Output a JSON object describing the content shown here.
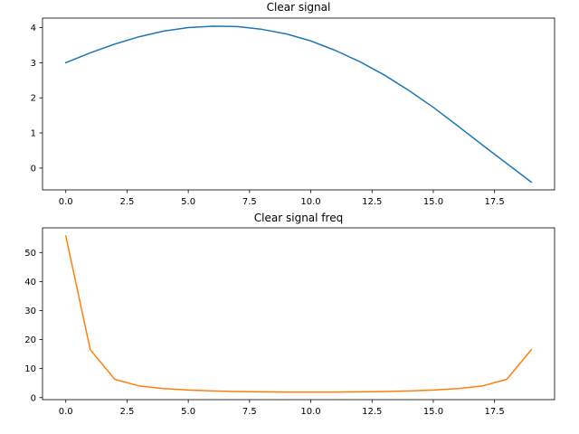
{
  "chart_data": [
    {
      "type": "line",
      "title": "Clear signal",
      "xlabel": "",
      "ylabel": "",
      "xlim": [
        -0.95,
        19.95
      ],
      "ylim": [
        -0.62,
        4.27
      ],
      "xticks": [
        0,
        2.5,
        5,
        7.5,
        10,
        12.5,
        15,
        17.5
      ],
      "xtick_labels": [
        "0.0",
        "2.5",
        "5.0",
        "7.5",
        "10.0",
        "12.5",
        "15.0",
        "17.5"
      ],
      "yticks": [
        0,
        1,
        2,
        3,
        4
      ],
      "ytick_labels": [
        "0",
        "1",
        "2",
        "3",
        "4"
      ],
      "grid": false,
      "series": [
        {
          "color": "#1f77b4",
          "x": [
            0,
            1,
            2,
            3,
            4,
            5,
            6,
            7,
            8,
            9,
            10,
            11,
            12,
            13,
            14,
            15,
            16,
            17,
            18,
            19
          ],
          "y": [
            3.0,
            3.28,
            3.53,
            3.74,
            3.9,
            4.0,
            4.04,
            4.03,
            3.95,
            3.82,
            3.62,
            3.35,
            3.03,
            2.65,
            2.21,
            1.73,
            1.2,
            0.66,
            0.13,
            -0.4
          ]
        }
      ]
    },
    {
      "type": "line",
      "title": "Clear signal freq",
      "xlabel": "",
      "ylabel": "",
      "xlim": [
        -0.95,
        19.95
      ],
      "ylim": [
        -0.7,
        58.5
      ],
      "xticks": [
        0,
        2.5,
        5,
        7.5,
        10,
        12.5,
        15,
        17.5
      ],
      "xtick_labels": [
        "0.0",
        "2.5",
        "5.0",
        "7.5",
        "10.0",
        "12.5",
        "15.0",
        "17.5"
      ],
      "yticks": [
        0,
        10,
        20,
        30,
        40,
        50
      ],
      "ytick_labels": [
        "0",
        "10",
        "20",
        "30",
        "40",
        "50"
      ],
      "grid": false,
      "series": [
        {
          "color": "#ff7f0e",
          "x": [
            0,
            1,
            2,
            3,
            4,
            5,
            6,
            7,
            8,
            9,
            10,
            11,
            12,
            13,
            14,
            15,
            16,
            17,
            18,
            19
          ],
          "y": [
            55.7,
            16.5,
            6.3,
            4.0,
            3.1,
            2.6,
            2.3,
            2.1,
            2.0,
            1.9,
            1.9,
            1.9,
            2.0,
            2.1,
            2.3,
            2.6,
            3.1,
            4.0,
            6.3,
            16.5
          ]
        }
      ]
    }
  ]
}
